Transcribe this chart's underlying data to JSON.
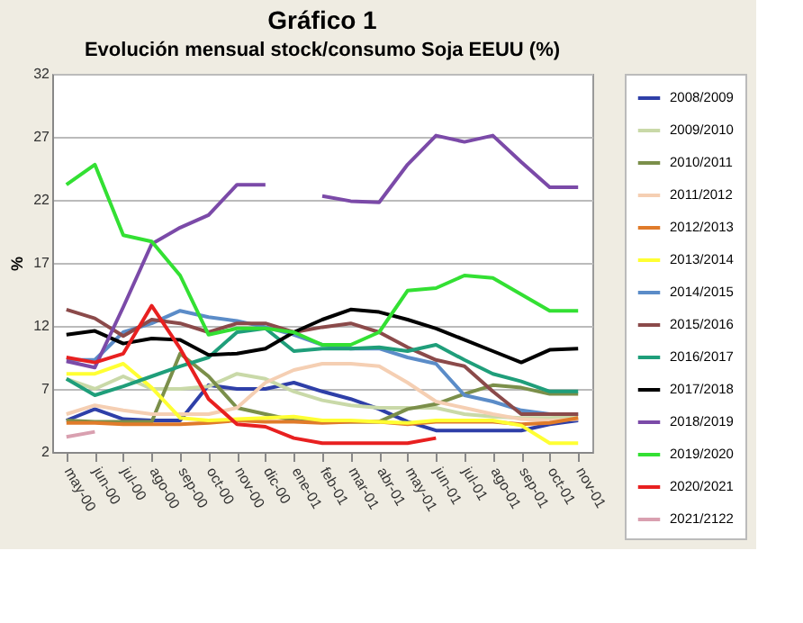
{
  "chart_data": {
    "type": "line",
    "title": "Gráfico 1",
    "subtitle": "Evolución mensual stock/consumo Soja EEUU (%)",
    "ylabel": "%",
    "categories": [
      "may-00",
      "jun-00",
      "jul-00",
      "ago-00",
      "sep-00",
      "oct-00",
      "nov-00",
      "dic-00",
      "ene-01",
      "feb-01",
      "mar-01",
      "abr-01",
      "may-01",
      "jun-01",
      "jul-01",
      "ago-01",
      "sep-01",
      "oct-01",
      "nov-01"
    ],
    "ylim": [
      2,
      32
    ],
    "yticks": [
      2,
      7,
      12,
      17,
      22,
      27,
      32
    ],
    "grid": "y",
    "legend": "right",
    "marker": "none",
    "line_style": "solid",
    "series": [
      {
        "name": "2008/2009",
        "color": "#2e3fa8",
        "values": [
          4.5,
          5.4,
          4.6,
          4.5,
          4.5,
          7.3,
          7.0,
          7.0,
          7.5,
          6.8,
          6.2,
          5.4,
          4.4,
          3.7,
          3.7,
          3.7,
          3.7,
          4.2,
          4.5
        ]
      },
      {
        "name": "2009/2010",
        "color": "#c9d9a8",
        "values": [
          7.8,
          7.0,
          8.0,
          7.0,
          7.0,
          7.2,
          8.2,
          7.8,
          6.8,
          6.1,
          5.7,
          5.5,
          5.5,
          5.5,
          5.0,
          4.8,
          4.7,
          4.7,
          4.8
        ]
      },
      {
        "name": "2010/2011",
        "color": "#7b8f4a",
        "values": [
          4.5,
          4.4,
          4.4,
          4.4,
          9.8,
          8.0,
          5.5,
          5.0,
          4.5,
          4.4,
          4.4,
          4.4,
          5.4,
          5.8,
          6.6,
          7.3,
          7.1,
          6.6,
          6.6
        ]
      },
      {
        "name": "2011/2012",
        "color": "#f5cfb3",
        "values": [
          5.0,
          5.7,
          5.3,
          5.0,
          5.0,
          5.0,
          5.5,
          7.5,
          8.5,
          9.0,
          9.0,
          8.8,
          7.5,
          6.0,
          5.5,
          5.0,
          4.6,
          4.5,
          4.6
        ]
      },
      {
        "name": "2012/2013",
        "color": "#e07b2a",
        "values": [
          4.3,
          4.3,
          4.2,
          4.2,
          4.2,
          4.3,
          4.5,
          4.4,
          4.4,
          4.3,
          4.4,
          4.4,
          4.2,
          4.4,
          4.4,
          4.4,
          4.2,
          4.3,
          4.7
        ]
      },
      {
        "name": "2013/2014",
        "color": "#ffff33",
        "values": [
          8.2,
          8.2,
          9.0,
          7.1,
          4.7,
          4.5,
          4.6,
          4.7,
          4.8,
          4.5,
          4.5,
          4.4,
          4.3,
          4.5,
          4.5,
          4.5,
          4.1,
          2.7,
          2.7
        ]
      },
      {
        "name": "2014/2015",
        "color": "#5b8cc8",
        "values": [
          9.3,
          9.3,
          11.5,
          12.2,
          13.2,
          12.7,
          12.4,
          11.9,
          11.3,
          10.5,
          10.2,
          10.2,
          9.5,
          9.0,
          6.5,
          6.0,
          5.3,
          5.0,
          5.0
        ]
      },
      {
        "name": "2015/2016",
        "color": "#8b4a4a",
        "values": [
          13.3,
          12.6,
          11.2,
          12.5,
          12.2,
          11.5,
          12.2,
          12.2,
          11.5,
          11.9,
          12.2,
          11.5,
          10.3,
          9.3,
          8.8,
          6.8,
          5.0,
          5.0,
          5.0
        ]
      },
      {
        "name": "2016/2017",
        "color": "#1f9e7a",
        "values": [
          7.8,
          6.5,
          7.2,
          8.0,
          8.8,
          9.5,
          11.5,
          11.8,
          10.0,
          10.2,
          10.2,
          10.3,
          10.0,
          10.5,
          9.3,
          8.2,
          7.6,
          6.8,
          6.8
        ]
      },
      {
        "name": "2017/2018",
        "color": "#000000",
        "values": [
          11.3,
          11.6,
          10.6,
          11.0,
          10.9,
          9.7,
          9.8,
          10.2,
          11.5,
          12.5,
          13.3,
          13.1,
          12.5,
          11.8,
          10.9,
          10.0,
          9.1,
          10.1,
          10.2
        ]
      },
      {
        "name": "2018/2019",
        "color": "#7b4aa8",
        "values": [
          9.2,
          8.7,
          13.5,
          18.5,
          19.8,
          20.8,
          23.2,
          23.2,
          null,
          22.3,
          21.9,
          21.8,
          24.8,
          27.1,
          26.6,
          27.1,
          25.0,
          23.0,
          23.0
        ]
      },
      {
        "name": "2019/2020",
        "color": "#33e033",
        "values": [
          23.2,
          24.8,
          19.2,
          18.7,
          16.0,
          11.3,
          11.8,
          11.8,
          11.5,
          10.5,
          10.5,
          11.5,
          14.8,
          15.0,
          16.0,
          15.8,
          14.5,
          13.2,
          13.2
        ]
      },
      {
        "name": "2020/2021",
        "color": "#e82020",
        "values": [
          9.5,
          9.1,
          9.8,
          13.6,
          10.2,
          6.2,
          4.2,
          4.0,
          3.1,
          2.7,
          2.7,
          2.7,
          2.7,
          3.1,
          null,
          null,
          null,
          null,
          null
        ]
      },
      {
        "name": "2021/2122",
        "color": "#d9a0b0",
        "values": [
          3.2,
          3.6,
          null,
          null,
          null,
          null,
          null,
          null,
          null,
          null,
          null,
          null,
          null,
          null,
          null,
          null,
          null,
          null,
          null
        ]
      }
    ]
  }
}
